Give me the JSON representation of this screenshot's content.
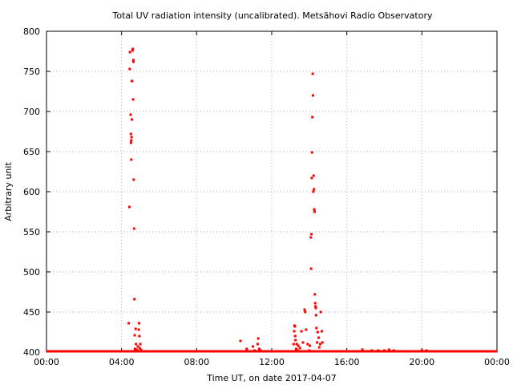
{
  "chart_data": {
    "type": "scatter",
    "title": "Total UV radiation intensity (uncalibrated). Metsähovi Radio Observatory",
    "xlabel": "Time UT, on date 2017-04-07",
    "ylabel": "Arbitrary unit",
    "xlim": [
      "00:00",
      "24:00"
    ],
    "ylim": [
      400,
      800
    ],
    "x_ticks": [
      "00:00",
      "04:00",
      "08:00",
      "12:00",
      "16:00",
      "20:00",
      "00:00"
    ],
    "y_ticks": [
      "400",
      "450",
      "500",
      "550",
      "600",
      "650",
      "700",
      "750",
      "800"
    ],
    "grid": true,
    "marker_color": "#ff0000",
    "baseline": {
      "value": 401,
      "from": "00:00",
      "to": "24:00"
    },
    "series": [
      {
        "points": [
          [
            "04:23",
            436
          ],
          [
            "04:25",
            581
          ],
          [
            "04:26",
            753
          ],
          [
            "04:27",
            774
          ],
          [
            "04:29",
            696
          ],
          [
            "04:30",
            672
          ],
          [
            "04:30",
            661
          ],
          [
            "04:31",
            664
          ],
          [
            "04:31",
            640
          ],
          [
            "04:32",
            668
          ],
          [
            "04:33",
            738
          ],
          [
            "04:33",
            690
          ],
          [
            "04:34",
            738
          ],
          [
            "04:35",
            776
          ],
          [
            "04:36",
            778
          ],
          [
            "04:37",
            715
          ],
          [
            "04:38",
            762
          ],
          [
            "04:38",
            764
          ],
          [
            "04:39",
            615
          ],
          [
            "04:40",
            554
          ],
          [
            "04:41",
            466
          ],
          [
            "04:42",
            421
          ],
          [
            "04:43",
            404
          ],
          [
            "04:45",
            429
          ],
          [
            "04:46",
            410
          ],
          [
            "04:48",
            403
          ],
          [
            "04:50",
            402
          ],
          [
            "04:52",
            407
          ],
          [
            "04:55",
            428
          ],
          [
            "04:56",
            436
          ],
          [
            "04:57",
            420
          ],
          [
            "04:58",
            405
          ],
          [
            "05:00",
            410
          ],
          [
            "05:02",
            403
          ],
          [
            "10:20",
            414
          ],
          [
            "10:40",
            404
          ],
          [
            "11:00",
            407
          ],
          [
            "11:05",
            402
          ],
          [
            "11:15",
            410
          ],
          [
            "11:17",
            417
          ],
          [
            "11:20",
            404
          ],
          [
            "11:25",
            402
          ],
          [
            "13:10",
            410
          ],
          [
            "13:12",
            426
          ],
          [
            "13:13",
            433
          ],
          [
            "13:14",
            432
          ],
          [
            "13:15",
            420
          ],
          [
            "13:16",
            415
          ],
          [
            "13:18",
            404
          ],
          [
            "13:20",
            410
          ],
          [
            "13:22",
            402
          ],
          [
            "13:25",
            408
          ],
          [
            "13:30",
            405
          ],
          [
            "13:35",
            426
          ],
          [
            "13:40",
            412
          ],
          [
            "13:45",
            453
          ],
          [
            "13:47",
            450
          ],
          [
            "13:50",
            428
          ],
          [
            "13:55",
            410
          ],
          [
            "14:00",
            402
          ],
          [
            "14:02",
            408
          ],
          [
            "14:05",
            543
          ],
          [
            "14:06",
            504
          ],
          [
            "14:07",
            547
          ],
          [
            "14:08",
            617
          ],
          [
            "14:09",
            649
          ],
          [
            "14:10",
            693
          ],
          [
            "14:11",
            747
          ],
          [
            "14:12",
            720
          ],
          [
            "14:13",
            600
          ],
          [
            "14:14",
            620
          ],
          [
            "14:15",
            603
          ],
          [
            "14:16",
            578
          ],
          [
            "14:17",
            575
          ],
          [
            "14:18",
            472
          ],
          [
            "14:19",
            461
          ],
          [
            "14:20",
            457
          ],
          [
            "14:21",
            455
          ],
          [
            "14:22",
            446
          ],
          [
            "14:23",
            430
          ],
          [
            "14:25",
            412
          ],
          [
            "14:27",
            425
          ],
          [
            "14:30",
            418
          ],
          [
            "14:32",
            406
          ],
          [
            "14:35",
            410
          ],
          [
            "14:37",
            450
          ],
          [
            "14:40",
            426
          ],
          [
            "14:42",
            412
          ],
          [
            "16:50",
            403
          ],
          [
            "17:20",
            402
          ],
          [
            "17:40",
            402
          ],
          [
            "18:00",
            402
          ],
          [
            "18:15",
            403
          ],
          [
            "18:30",
            402
          ],
          [
            "20:00",
            402
          ],
          [
            "20:15",
            402
          ]
        ]
      }
    ]
  }
}
